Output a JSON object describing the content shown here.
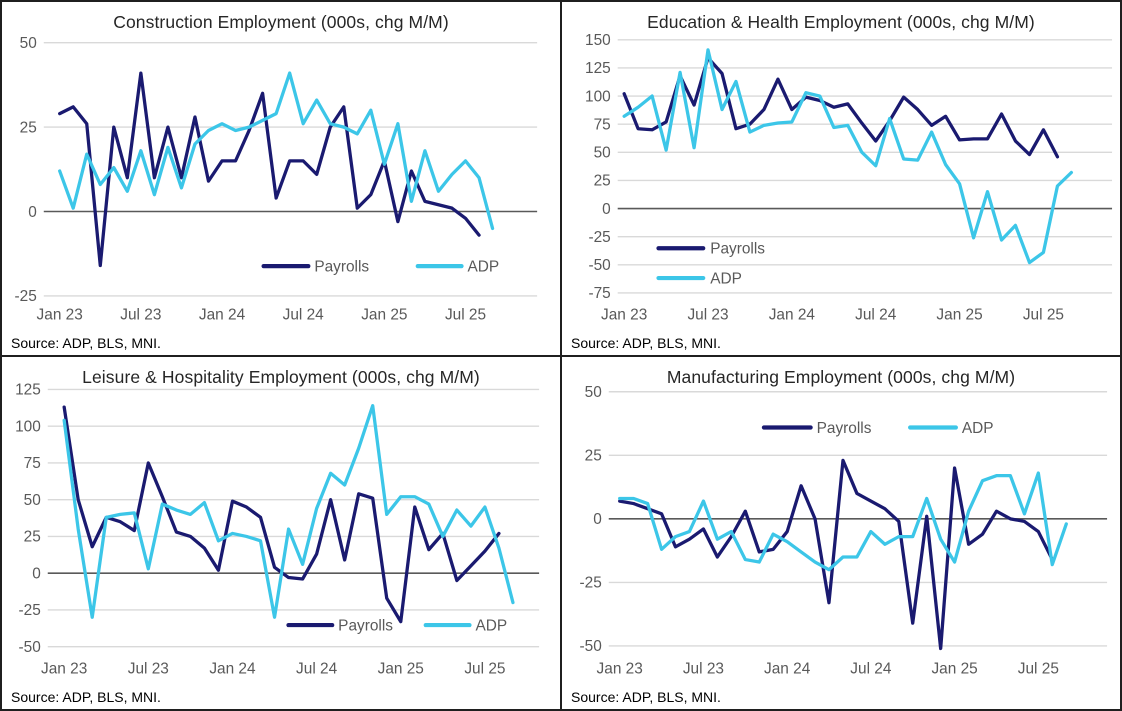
{
  "palette": {
    "payrolls": "#1A1A70",
    "adp": "#3CC6E8",
    "grid": "#D9D9D9",
    "zero_line": "#595959",
    "axis_text": "#595959",
    "title_text": "#262626",
    "source_text": "#000000",
    "panel_border": "#1F1F1F",
    "background": "#FFFFFF"
  },
  "legend_labels": {
    "payrolls": "Payrolls",
    "adp": "ADP"
  },
  "chart_data": [
    {
      "key": "construction",
      "type": "line",
      "title": "Construction Employment (000s, chg M/M)",
      "source": "Source: ADP, BLS, MNI.",
      "x_tick_labels": [
        "Jan 23",
        "Jul 23",
        "Jan 24",
        "Jul 24",
        "Jan 25",
        "Jul 25"
      ],
      "x_tick_indices": [
        0,
        6,
        12,
        18,
        24,
        30
      ],
      "n_points": 33,
      "ylim": [
        -25,
        50
      ],
      "yticks": [
        50,
        25,
        0,
        -25
      ],
      "grid": true,
      "legend_position": "bottom-right",
      "series": [
        {
          "name": "Payrolls",
          "color_key": "payrolls",
          "values": [
            29,
            31,
            26,
            -16,
            25,
            10,
            41,
            10,
            25,
            10,
            28,
            9,
            15,
            15,
            24,
            35,
            4,
            15,
            15,
            11,
            25,
            31,
            1,
            5,
            15,
            -3,
            12,
            3,
            2,
            1,
            -2,
            -7,
            null
          ]
        },
        {
          "name": "ADP",
          "color_key": "adp",
          "values": [
            12,
            1,
            17,
            8,
            13,
            6,
            18,
            5,
            19,
            7,
            20,
            24,
            26,
            24,
            25,
            27,
            29,
            41,
            26,
            33,
            26,
            25,
            23,
            30,
            14,
            26,
            3,
            18,
            6,
            11,
            15,
            10,
            -5
          ]
        }
      ]
    },
    {
      "key": "education_health",
      "type": "line",
      "title": "Education & Health Employment (000s, chg M/M)",
      "source": "Source: ADP, BLS, MNI.",
      "x_tick_labels": [
        "Jan 23",
        "Jul 23",
        "Jan 24",
        "Jul 24",
        "Jan 25",
        "Jul 25"
      ],
      "x_tick_indices": [
        0,
        6,
        12,
        18,
        24,
        30
      ],
      "n_points": 33,
      "ylim": [
        -75,
        150
      ],
      "yticks": [
        150,
        125,
        100,
        75,
        50,
        25,
        0,
        -25,
        -50,
        -75
      ],
      "grid": true,
      "legend_position": "lower-left-stacked",
      "series": [
        {
          "name": "Payrolls",
          "color_key": "payrolls",
          "values": [
            102,
            71,
            70,
            77,
            118,
            92,
            134,
            120,
            71,
            75,
            88,
            115,
            88,
            99,
            96,
            90,
            93,
            76,
            60,
            78,
            99,
            88,
            74,
            82,
            61,
            62,
            62,
            84,
            60,
            48,
            70,
            46,
            null
          ]
        },
        {
          "name": "ADP",
          "color_key": "adp",
          "values": [
            82,
            90,
            100,
            52,
            121,
            54,
            141,
            88,
            113,
            68,
            74,
            76,
            77,
            103,
            100,
            72,
            74,
            50,
            38,
            80,
            44,
            43,
            68,
            39,
            22,
            -26,
            15,
            -28,
            -15,
            -48,
            -39,
            20,
            32
          ]
        }
      ]
    },
    {
      "key": "leisure_hospitality",
      "type": "line",
      "title": "Leisure & Hospitality Employment (000s, chg M/M)",
      "source": "Source: ADP, BLS, MNI.",
      "x_tick_labels": [
        "Jan 23",
        "Jul 23",
        "Jan 24",
        "Jul 24",
        "Jan 25",
        "Jul 25"
      ],
      "x_tick_indices": [
        0,
        6,
        12,
        18,
        24,
        30
      ],
      "n_points": 33,
      "ylim": [
        -50,
        125
      ],
      "yticks": [
        125,
        100,
        75,
        50,
        25,
        0,
        -25,
        -50
      ],
      "grid": true,
      "legend_position": "bottom-right",
      "series": [
        {
          "name": "Payrolls",
          "color_key": "payrolls",
          "values": [
            113,
            50,
            18,
            38,
            35,
            29,
            75,
            52,
            28,
            25,
            17,
            2,
            49,
            45,
            38,
            4,
            -3,
            -4,
            13,
            50,
            9,
            54,
            51,
            -17,
            -33,
            45,
            16,
            27,
            -5,
            5,
            15,
            27,
            null
          ]
        },
        {
          "name": "ADP",
          "color_key": "adp",
          "values": [
            104,
            30,
            -30,
            38,
            40,
            41,
            3,
            47,
            43,
            40,
            48,
            22,
            27,
            25,
            22,
            -30,
            30,
            6,
            44,
            68,
            60,
            85,
            114,
            40,
            52,
            52,
            47,
            25,
            43,
            32,
            45,
            17,
            -20
          ]
        }
      ]
    },
    {
      "key": "manufacturing",
      "type": "line",
      "title": "Manufacturing Employment (000s, chg M/M)",
      "source": "Source: ADP, BLS, MNI.",
      "x_tick_labels": [
        "Jan 23",
        "Jul 23",
        "Jan 24",
        "Jul 24",
        "Jan 25",
        "Jul 25"
      ],
      "x_tick_indices": [
        0,
        6,
        12,
        18,
        24,
        30
      ],
      "n_points": 33,
      "ylim": [
        -50,
        50
      ],
      "yticks": [
        50,
        25,
        0,
        -25,
        -50
      ],
      "grid": true,
      "legend_position": "top-center",
      "series": [
        {
          "name": "Payrolls",
          "color_key": "payrolls",
          "values": [
            7,
            6,
            4,
            2,
            -11,
            -8,
            -4,
            -15,
            -7,
            3,
            -13,
            -12,
            -5,
            13,
            0,
            -33,
            23,
            10,
            7,
            4,
            -1,
            -41,
            1,
            -51,
            20,
            -10,
            -6,
            3,
            0,
            -1,
            -5,
            -16,
            null
          ]
        },
        {
          "name": "ADP",
          "color_key": "adp",
          "values": [
            8,
            8,
            6,
            -12,
            -7,
            -5,
            7,
            -8,
            -5,
            -16,
            -17,
            -6,
            -9,
            -13,
            -17,
            -20,
            -15,
            -15,
            -5,
            -10,
            -7,
            -7,
            8,
            -8,
            -17,
            3,
            15,
            17,
            17,
            2,
            18,
            -18,
            -2
          ]
        }
      ]
    }
  ]
}
